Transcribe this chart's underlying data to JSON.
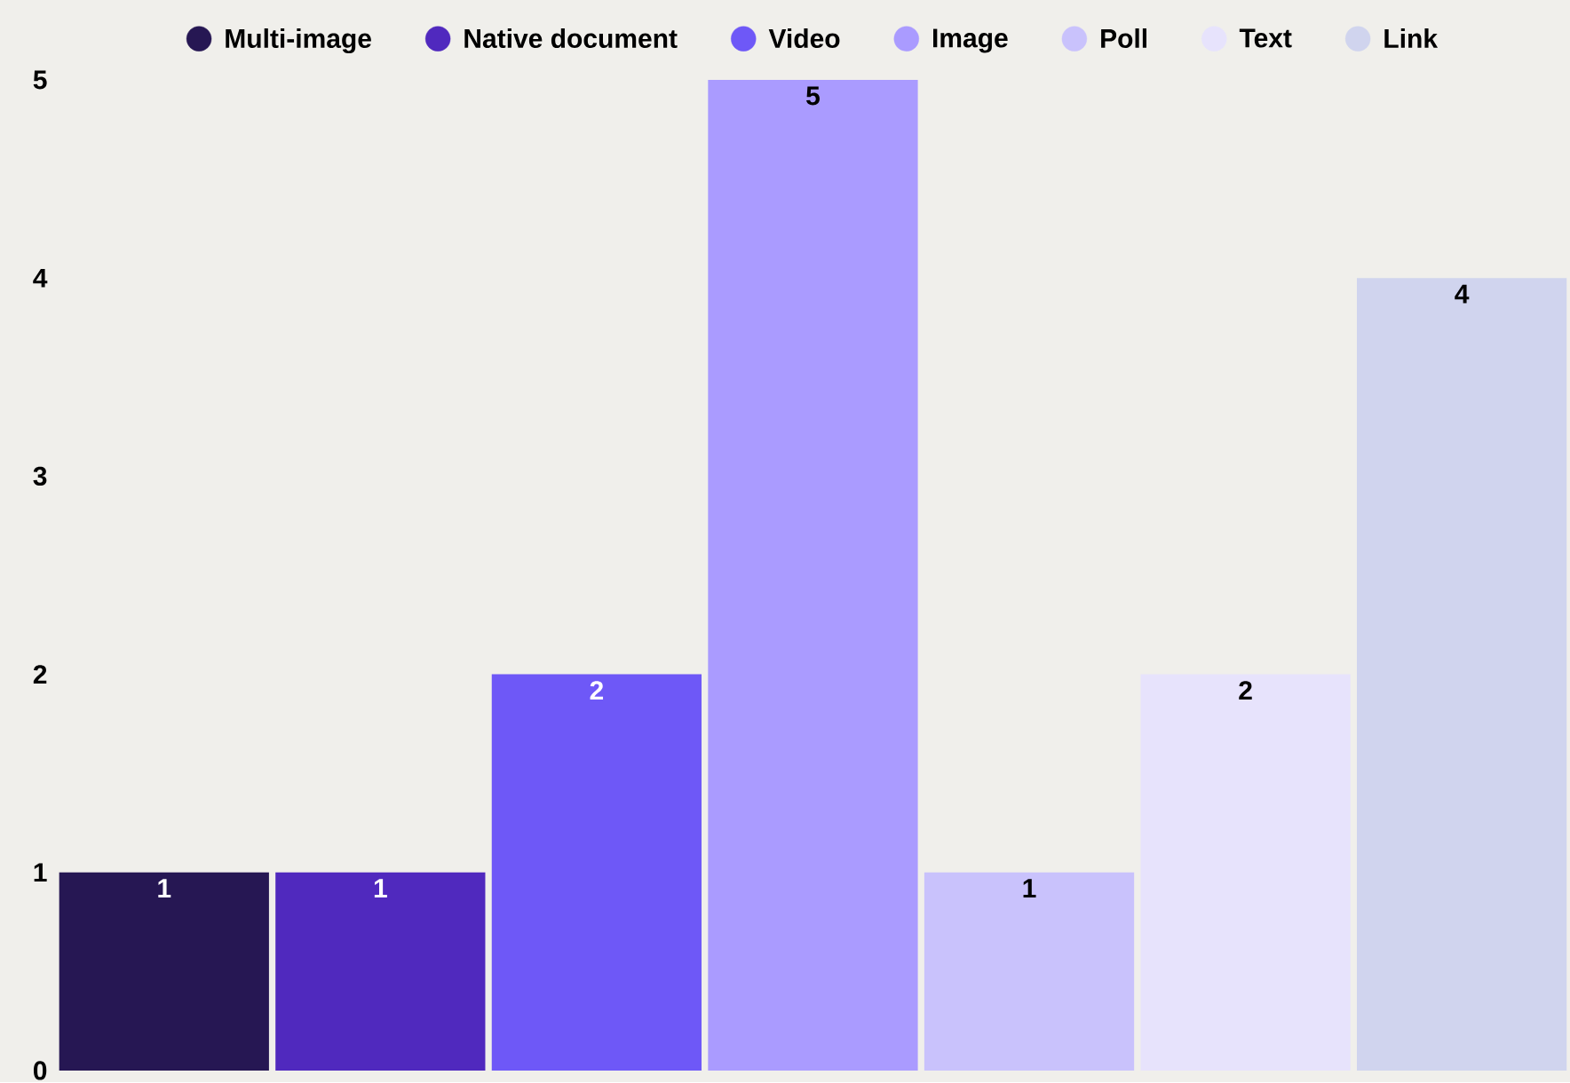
{
  "chart_data": {
    "type": "bar",
    "stacked": true,
    "categories": [
      null,
      null,
      null,
      null,
      null,
      null,
      null
    ],
    "series": [
      {
        "name": "Multi-image",
        "color": "#261753",
        "values": [
          1,
          null,
          null,
          null,
          null,
          null,
          null
        ]
      },
      {
        "name": "Native document",
        "color": "#5029be",
        "values": [
          null,
          1,
          null,
          null,
          null,
          null,
          null
        ]
      },
      {
        "name": "Video",
        "color": "#6e58f7",
        "values": [
          null,
          null,
          2,
          null,
          null,
          null,
          null
        ]
      },
      {
        "name": "Image",
        "color": "#aa9bff",
        "values": [
          null,
          null,
          null,
          5,
          null,
          null,
          null
        ]
      },
      {
        "name": "Poll",
        "color": "#c9c2fc",
        "values": [
          null,
          null,
          null,
          null,
          1,
          null,
          null
        ]
      },
      {
        "name": "Text",
        "color": "#e7e3fc",
        "values": [
          null,
          null,
          null,
          null,
          null,
          2,
          null
        ]
      },
      {
        "name": "Link",
        "color": "#d0d4ee",
        "values": [
          null,
          null,
          null,
          null,
          null,
          null,
          4
        ]
      }
    ],
    "ylim": [
      0,
      5
    ],
    "yticks": [
      0,
      1,
      2,
      3,
      4,
      5
    ],
    "grid": false,
    "legend": "top",
    "data_labels": true
  }
}
